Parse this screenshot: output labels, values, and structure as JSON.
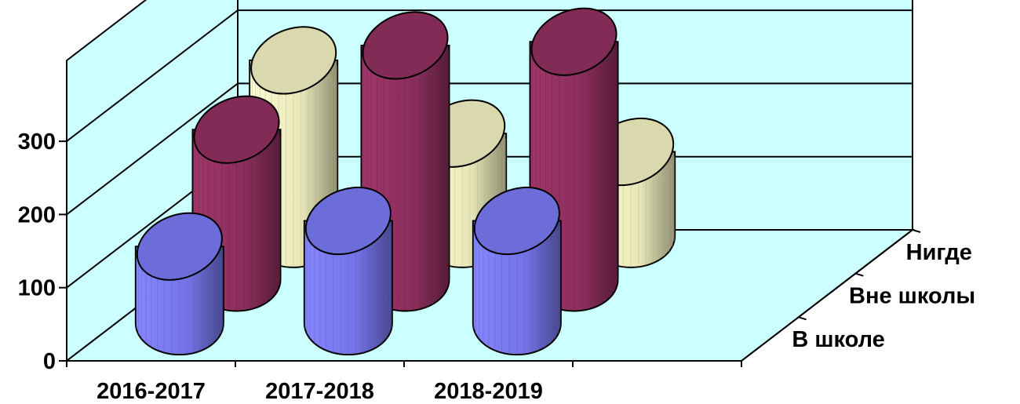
{
  "chart_data": {
    "type": "bar",
    "style": "3d-cylinder",
    "title": "",
    "xlabel": "",
    "ylabel": "",
    "categories": [
      "2016-2017",
      "2017-2018",
      "2018-2019"
    ],
    "series": [
      {
        "name": "В школе",
        "values": [
          105,
          140,
          140
        ],
        "color": "#8080ff"
      },
      {
        "name": "Вне школы",
        "values": [
          205,
          320,
          325
        ],
        "color": "#993366"
      },
      {
        "name": "Нигде",
        "values": [
          240,
          140,
          115
        ],
        "color": "#ffffcc"
      }
    ],
    "ylim": [
      0,
      300
    ],
    "yticks": [
      "0",
      "100",
      "200",
      "300"
    ],
    "grid": true,
    "walls_color": "#ccffff"
  }
}
